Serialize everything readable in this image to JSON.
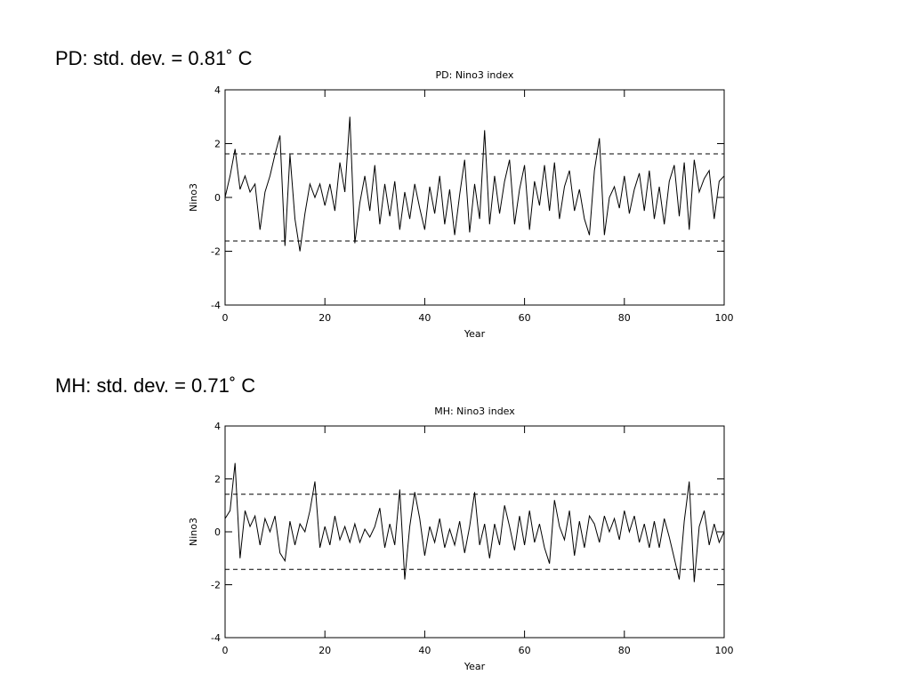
{
  "chart_data": [
    {
      "type": "line",
      "caption": "PD: std. dev. = 0.81˚ C",
      "title": "PD: Nino3 index",
      "xlabel": "Year",
      "ylabel": "Nino3",
      "xlim": [
        0,
        100
      ],
      "ylim": [
        -4,
        4
      ],
      "xticks": [
        0,
        20,
        40,
        60,
        80,
        100
      ],
      "yticks": [
        -4,
        -2,
        0,
        2,
        4
      ],
      "hlines": [
        1.62,
        -1.62
      ],
      "x": [
        0,
        1,
        2,
        3,
        4,
        5,
        6,
        7,
        8,
        9,
        10,
        11,
        12,
        13,
        14,
        15,
        16,
        17,
        18,
        19,
        20,
        21,
        22,
        23,
        24,
        25,
        26,
        27,
        28,
        29,
        30,
        31,
        32,
        33,
        34,
        35,
        36,
        37,
        38,
        39,
        40,
        41,
        42,
        43,
        44,
        45,
        46,
        47,
        48,
        49,
        50,
        51,
        52,
        53,
        54,
        55,
        56,
        57,
        58,
        59,
        60,
        61,
        62,
        63,
        64,
        65,
        66,
        67,
        68,
        69,
        70,
        71,
        72,
        73,
        74,
        75,
        76,
        77,
        78,
        79,
        80,
        81,
        82,
        83,
        84,
        85,
        86,
        87,
        88,
        89,
        90,
        91,
        92,
        93,
        94,
        95,
        96,
        97,
        98,
        99,
        100
      ],
      "series": [
        {
          "color": "#000000",
          "values": [
            0,
            0.8,
            1.8,
            0.3,
            0.8,
            0.2,
            0.5,
            -1.2,
            0.2,
            0.8,
            1.6,
            2.3,
            -1.8,
            1.6,
            -0.8,
            -2.0,
            -0.6,
            0.5,
            0,
            0.5,
            -0.3,
            0.5,
            -0.5,
            1.3,
            0.2,
            3.0,
            -1.7,
            -0.2,
            0.8,
            -0.5,
            1.2,
            -1.0,
            0.5,
            -0.7,
            0.6,
            -1.2,
            0.2,
            -0.8,
            0.5,
            -0.4,
            -1.2,
            0.4,
            -0.6,
            0.8,
            -1.0,
            0.3,
            -1.4,
            0.1,
            1.4,
            -1.3,
            0.5,
            -0.8,
            2.5,
            -1.0,
            0.8,
            -0.6,
            0.6,
            1.4,
            -1.0,
            0.3,
            1.2,
            -1.2,
            0.6,
            -0.3,
            1.2,
            -0.5,
            1.3,
            -0.8,
            0.4,
            1.0,
            -0.5,
            0.3,
            -0.8,
            -1.4,
            1.0,
            2.2,
            -1.4,
            0,
            0.4,
            -0.4,
            0.8,
            -0.6,
            0.3,
            0.9,
            -0.5,
            1.0,
            -0.8,
            0.4,
            -1.0,
            0.6,
            1.2,
            -0.7,
            1.3,
            -1.2,
            1.4,
            0.2,
            0.7,
            1.0,
            -0.8,
            0.6,
            0.8
          ]
        }
      ]
    },
    {
      "type": "line",
      "caption": "MH: std. dev. = 0.71˚ C",
      "title": "MH: Nino3 index",
      "xlabel": "Year",
      "ylabel": "Nino3",
      "xlim": [
        0,
        100
      ],
      "ylim": [
        -4,
        4
      ],
      "xticks": [
        0,
        20,
        40,
        60,
        80,
        100
      ],
      "yticks": [
        -4,
        -2,
        0,
        2,
        4
      ],
      "hlines": [
        1.42,
        -1.42
      ],
      "x": [
        0,
        1,
        2,
        3,
        4,
        5,
        6,
        7,
        8,
        9,
        10,
        11,
        12,
        13,
        14,
        15,
        16,
        17,
        18,
        19,
        20,
        21,
        22,
        23,
        24,
        25,
        26,
        27,
        28,
        29,
        30,
        31,
        32,
        33,
        34,
        35,
        36,
        37,
        38,
        39,
        40,
        41,
        42,
        43,
        44,
        45,
        46,
        47,
        48,
        49,
        50,
        51,
        52,
        53,
        54,
        55,
        56,
        57,
        58,
        59,
        60,
        61,
        62,
        63,
        64,
        65,
        66,
        67,
        68,
        69,
        70,
        71,
        72,
        73,
        74,
        75,
        76,
        77,
        78,
        79,
        80,
        81,
        82,
        83,
        84,
        85,
        86,
        87,
        88,
        89,
        90,
        91,
        92,
        93,
        94,
        95,
        96,
        97,
        98,
        99,
        100
      ],
      "series": [
        {
          "color": "#000000",
          "values": [
            0.5,
            0.8,
            2.6,
            -1.0,
            0.8,
            0.2,
            0.6,
            -0.5,
            0.5,
            0,
            0.6,
            -0.8,
            -1.1,
            0.4,
            -0.5,
            0.3,
            0,
            0.8,
            1.9,
            -0.6,
            0.2,
            -0.5,
            0.6,
            -0.3,
            0.2,
            -0.4,
            0.3,
            -0.4,
            0.1,
            -0.2,
            0.2,
            0.9,
            -0.6,
            0.3,
            -0.5,
            1.6,
            -1.8,
            0.2,
            1.5,
            0.5,
            -0.9,
            0.2,
            -0.4,
            0.5,
            -0.6,
            0.1,
            -0.5,
            0.4,
            -0.8,
            0.2,
            1.5,
            -0.5,
            0.3,
            -1.0,
            0.3,
            -0.5,
            1.0,
            0.2,
            -0.7,
            0.6,
            -0.5,
            0.8,
            -0.4,
            0.3,
            -0.6,
            -1.2,
            1.2,
            0.2,
            -0.3,
            0.8,
            -0.9,
            0.4,
            -0.6,
            0.6,
            0.3,
            -0.4,
            0.6,
            0,
            0.5,
            -0.3,
            0.8,
            0,
            0.6,
            -0.4,
            0.3,
            -0.6,
            0.4,
            -0.6,
            0.5,
            -0.2,
            -1.0,
            -1.8,
            0.4,
            1.9,
            -1.9,
            0.2,
            0.8,
            -0.5,
            0.3,
            -0.4,
            0
          ]
        }
      ]
    }
  ]
}
